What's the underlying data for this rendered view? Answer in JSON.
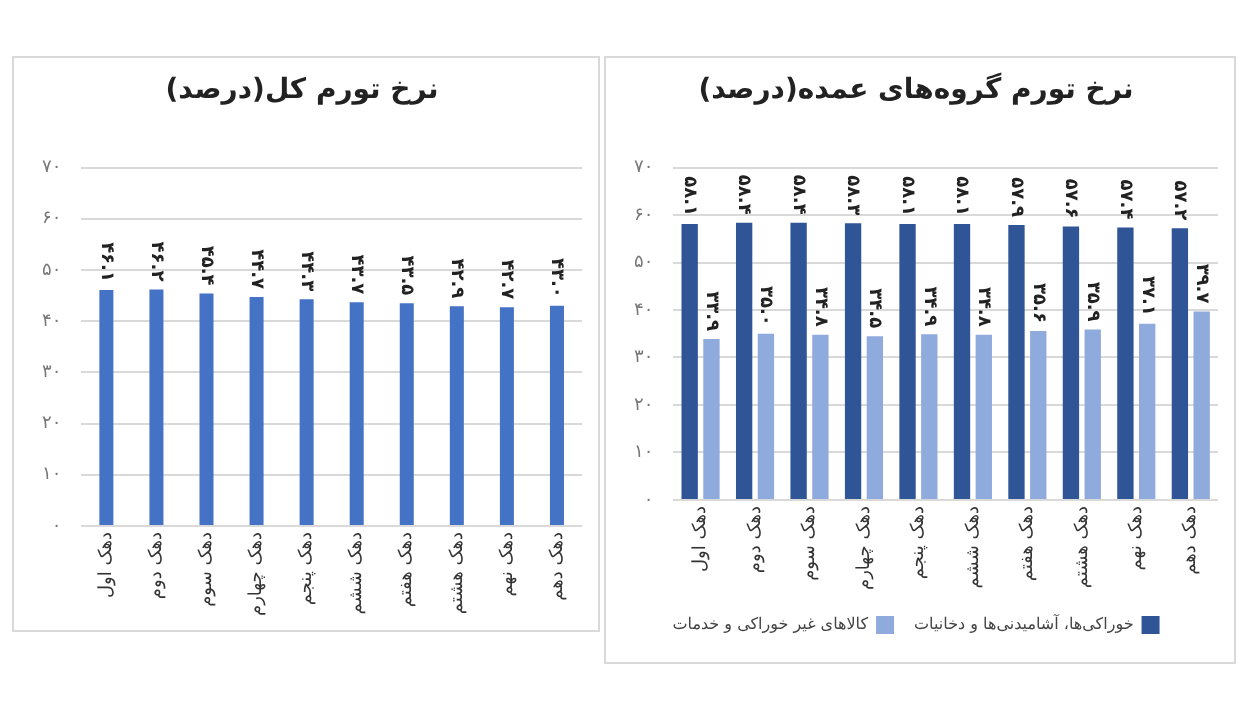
{
  "chart_data": [
    {
      "type": "bar",
      "title": "نرخ تورم کل(درصد)",
      "categories": [
        "دهک اول",
        "دهک دوم",
        "دهک سوم",
        "دهک چهارم",
        "دهک پنجم",
        "دهک ششم",
        "دهک هفتم",
        "دهک هشتم",
        "دهک نهم",
        "دهک دهم"
      ],
      "values": [
        46.1,
        46.2,
        45.4,
        44.7,
        44.3,
        43.7,
        43.5,
        42.9,
        42.7,
        43.0
      ],
      "value_labels": [
        "۴۶.۱",
        "۴۶.۲",
        "۴۵.۴",
        "۴۴.۷",
        "۴۴.۳",
        "۴۳.۷",
        "۴۳.۵",
        "۴۲.۹",
        "۴۲.۷",
        "۴۳.۰"
      ],
      "color": "#4472c4",
      "ylim": [
        0,
        70
      ],
      "yticks": [
        {
          "value": 0,
          "label": "۰"
        },
        {
          "value": 10,
          "label": "۱۰"
        },
        {
          "value": 20,
          "label": "۲۰"
        },
        {
          "value": 30,
          "label": "۳۰"
        },
        {
          "value": 40,
          "label": "۴۰"
        },
        {
          "value": 50,
          "label": "۵۰"
        },
        {
          "value": 60,
          "label": "۶۰"
        },
        {
          "value": 70,
          "label": "۷۰"
        }
      ],
      "grid": "y",
      "legend": false
    },
    {
      "type": "bar",
      "title": "نرخ تورم گروه‌های عمده(درصد)",
      "categories": [
        "دهک اول",
        "دهک دوم",
        "دهک سوم",
        "دهک چهارم",
        "دهک پنجم",
        "دهک ششم",
        "دهک هفتم",
        "دهک هشتم",
        "دهک نهم",
        "دهک دهم"
      ],
      "series": [
        {
          "name": "خوراکی‌ها، آشامیدنی‌ها و دخانیات",
          "color": "#2f5597",
          "values": [
            58.1,
            58.4,
            58.4,
            58.3,
            58.1,
            58.1,
            57.9,
            57.6,
            57.4,
            57.2
          ],
          "value_labels": [
            "۵۸.۱",
            "۵۸.۴",
            "۵۸.۴",
            "۵۸.۳",
            "۵۸.۱",
            "۵۸.۱",
            "۵۷.۹",
            "۵۷.۶",
            "۵۷.۴",
            "۵۷.۲"
          ]
        },
        {
          "name": "کالاهای غیر خوراکی و خدمات",
          "color": "#8faadc",
          "values": [
            33.9,
            35.0,
            34.8,
            34.5,
            34.9,
            34.8,
            35.6,
            35.9,
            37.1,
            39.7
          ],
          "value_labels": [
            "۳۳.۹",
            "۳۵.۰",
            "۳۴.۸",
            "۳۴.۵",
            "۳۴.۹",
            "۳۴.۸",
            "۳۵.۶",
            "۳۵.۹",
            "۳۷.۱",
            "۳۹.۷"
          ]
        }
      ],
      "ylim": [
        0,
        70
      ],
      "yticks": [
        {
          "value": 0,
          "label": "۰"
        },
        {
          "value": 10,
          "label": "۱۰"
        },
        {
          "value": 20,
          "label": "۲۰"
        },
        {
          "value": 30,
          "label": "۳۰"
        },
        {
          "value": 40,
          "label": "۴۰"
        },
        {
          "value": 50,
          "label": "۵۰"
        },
        {
          "value": 60,
          "label": "۶۰"
        },
        {
          "value": 70,
          "label": "۷۰"
        }
      ],
      "grid": "y",
      "legend": "bottom"
    }
  ]
}
